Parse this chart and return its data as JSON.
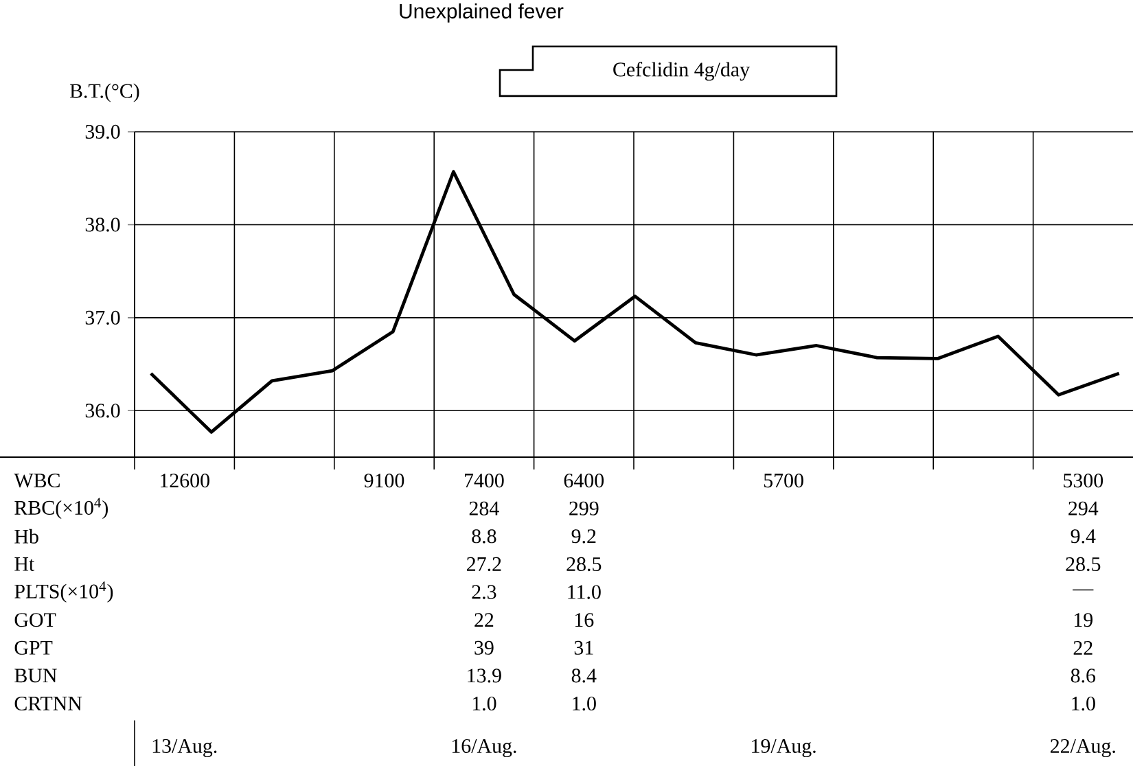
{
  "chart_data": [
    {
      "type": "line",
      "title": "Unexplained fever",
      "ylabel": "B.T.(°C)",
      "categories": [
        null,
        null,
        null,
        null,
        null,
        null,
        null,
        null,
        null,
        null,
        null,
        null,
        null,
        null,
        null,
        null,
        null
      ],
      "series": [
        {
          "color": "#000000",
          "values": [
            36.4,
            35.77,
            36.32,
            36.43,
            36.85,
            38.57,
            37.25,
            36.75,
            37.23,
            36.73,
            36.6,
            36.7,
            36.57,
            36.56,
            36.8,
            36.17,
            36.4
          ]
        }
      ],
      "ylim": [
        35.5,
        39.0
      ],
      "yticks": [
        {
          "value": 36,
          "label": "36.0"
        },
        {
          "value": 37,
          "label": "37.0"
        },
        {
          "value": 38,
          "label": "38.0"
        },
        {
          "value": 39,
          "label": "39.0"
        }
      ],
      "grid": "y",
      "tick_labels": "y",
      "marker": "none",
      "line_style": "solid",
      "annotations": [
        "Cefclidin 4g/day"
      ]
    },
    {
      "type": "other",
      "categories": [
        "13/Aug.",
        null,
        null,
        "16/Aug.",
        null,
        null,
        "19/Aug.",
        null,
        null,
        "22/Aug."
      ],
      "y_categories": [
        "WBC",
        "RBC(×10$^{4}$)",
        "Hb",
        "Ht",
        "PLTS(×10$^{4}$)",
        "GOT",
        "GPT",
        "BUN",
        "CRTNN"
      ],
      "cell_labels": [
        [
          "12600",
          null,
          "9100",
          "7400",
          "6400",
          null,
          "5700",
          null,
          null,
          "5300"
        ],
        [
          null,
          null,
          null,
          "284",
          "299",
          null,
          null,
          null,
          null,
          "294"
        ],
        [
          null,
          null,
          null,
          "8.8",
          "9.2",
          null,
          null,
          null,
          null,
          "9.4"
        ],
        [
          null,
          null,
          null,
          "27.2",
          "28.5",
          null,
          null,
          null,
          null,
          "28.5"
        ],
        [
          null,
          null,
          null,
          "2.3",
          "11.0",
          null,
          null,
          null,
          null,
          "—"
        ],
        [
          null,
          null,
          null,
          "22",
          "16",
          null,
          null,
          null,
          null,
          "19"
        ],
        [
          null,
          null,
          null,
          "39",
          "31",
          null,
          null,
          null,
          null,
          "22"
        ],
        [
          null,
          null,
          null,
          "13.9",
          "8.4",
          null,
          null,
          null,
          null,
          "8.6"
        ],
        [
          null,
          null,
          null,
          "1.0",
          "1.0",
          null,
          null,
          null,
          null,
          "1.0"
        ]
      ]
    }
  ]
}
